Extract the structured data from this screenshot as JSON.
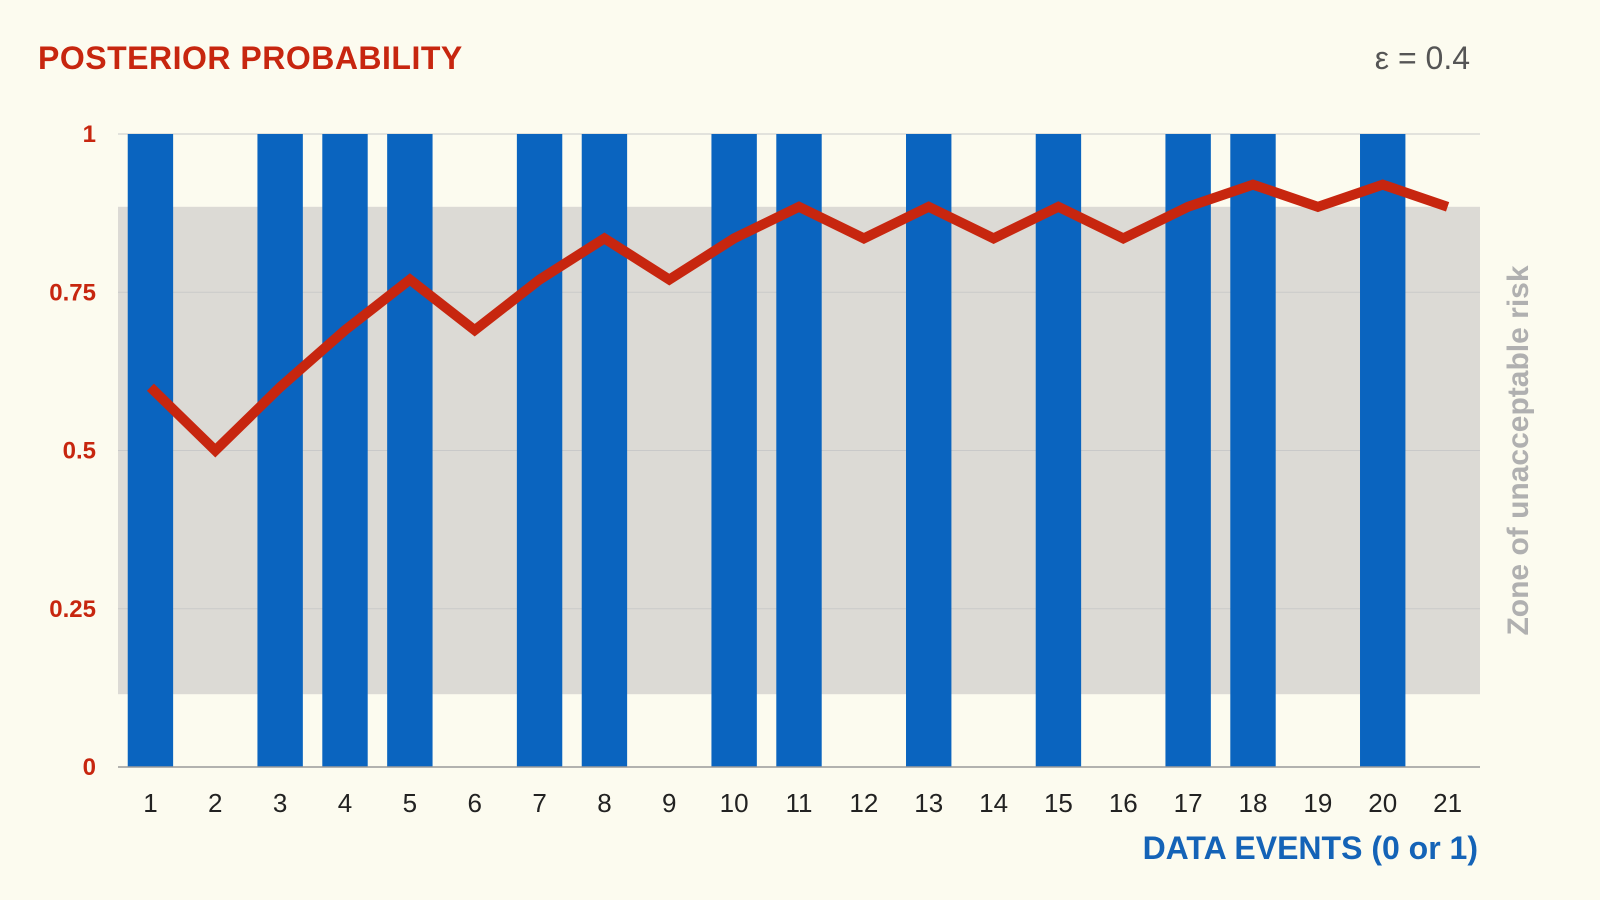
{
  "title": "POSTERIOR PROBABILITY",
  "epsilon_label": "ε = 0.4",
  "chart_data": {
    "type": "bar",
    "title": "POSTERIOR PROBABILITY",
    "xlabel": "DATA EVENTS (0 or 1)",
    "ylabel": "",
    "ylim": [
      0,
      1
    ],
    "yticks": [
      "0",
      "0.25",
      "0.5",
      "0.75",
      "1"
    ],
    "ytick_values": [
      0,
      0.25,
      0.5,
      0.75,
      1
    ],
    "categories": [
      "1",
      "2",
      "3",
      "4",
      "5",
      "6",
      "7",
      "8",
      "9",
      "10",
      "11",
      "12",
      "13",
      "14",
      "15",
      "16",
      "17",
      "18",
      "19",
      "20",
      "21"
    ],
    "series": [
      {
        "name": "Data events",
        "kind": "bar",
        "color": "#0a64bf",
        "values": [
          1,
          0,
          1,
          1,
          1,
          0,
          1,
          1,
          0,
          1,
          1,
          0,
          1,
          0,
          1,
          0,
          1,
          1,
          0,
          1,
          0
        ]
      },
      {
        "name": "Posterior probability",
        "kind": "line",
        "color": "#c7260f",
        "values": [
          0.6,
          0.5,
          0.6,
          0.69,
          0.77,
          0.69,
          0.77,
          0.835,
          0.77,
          0.835,
          0.885,
          0.835,
          0.885,
          0.835,
          0.885,
          0.835,
          0.885,
          0.92,
          0.885,
          0.92,
          0.885
        ]
      }
    ],
    "zone": {
      "label": "Zone of unacceptable risk",
      "range": [
        0.115,
        0.885
      ],
      "color": "#dcdad5"
    },
    "grid": true
  }
}
